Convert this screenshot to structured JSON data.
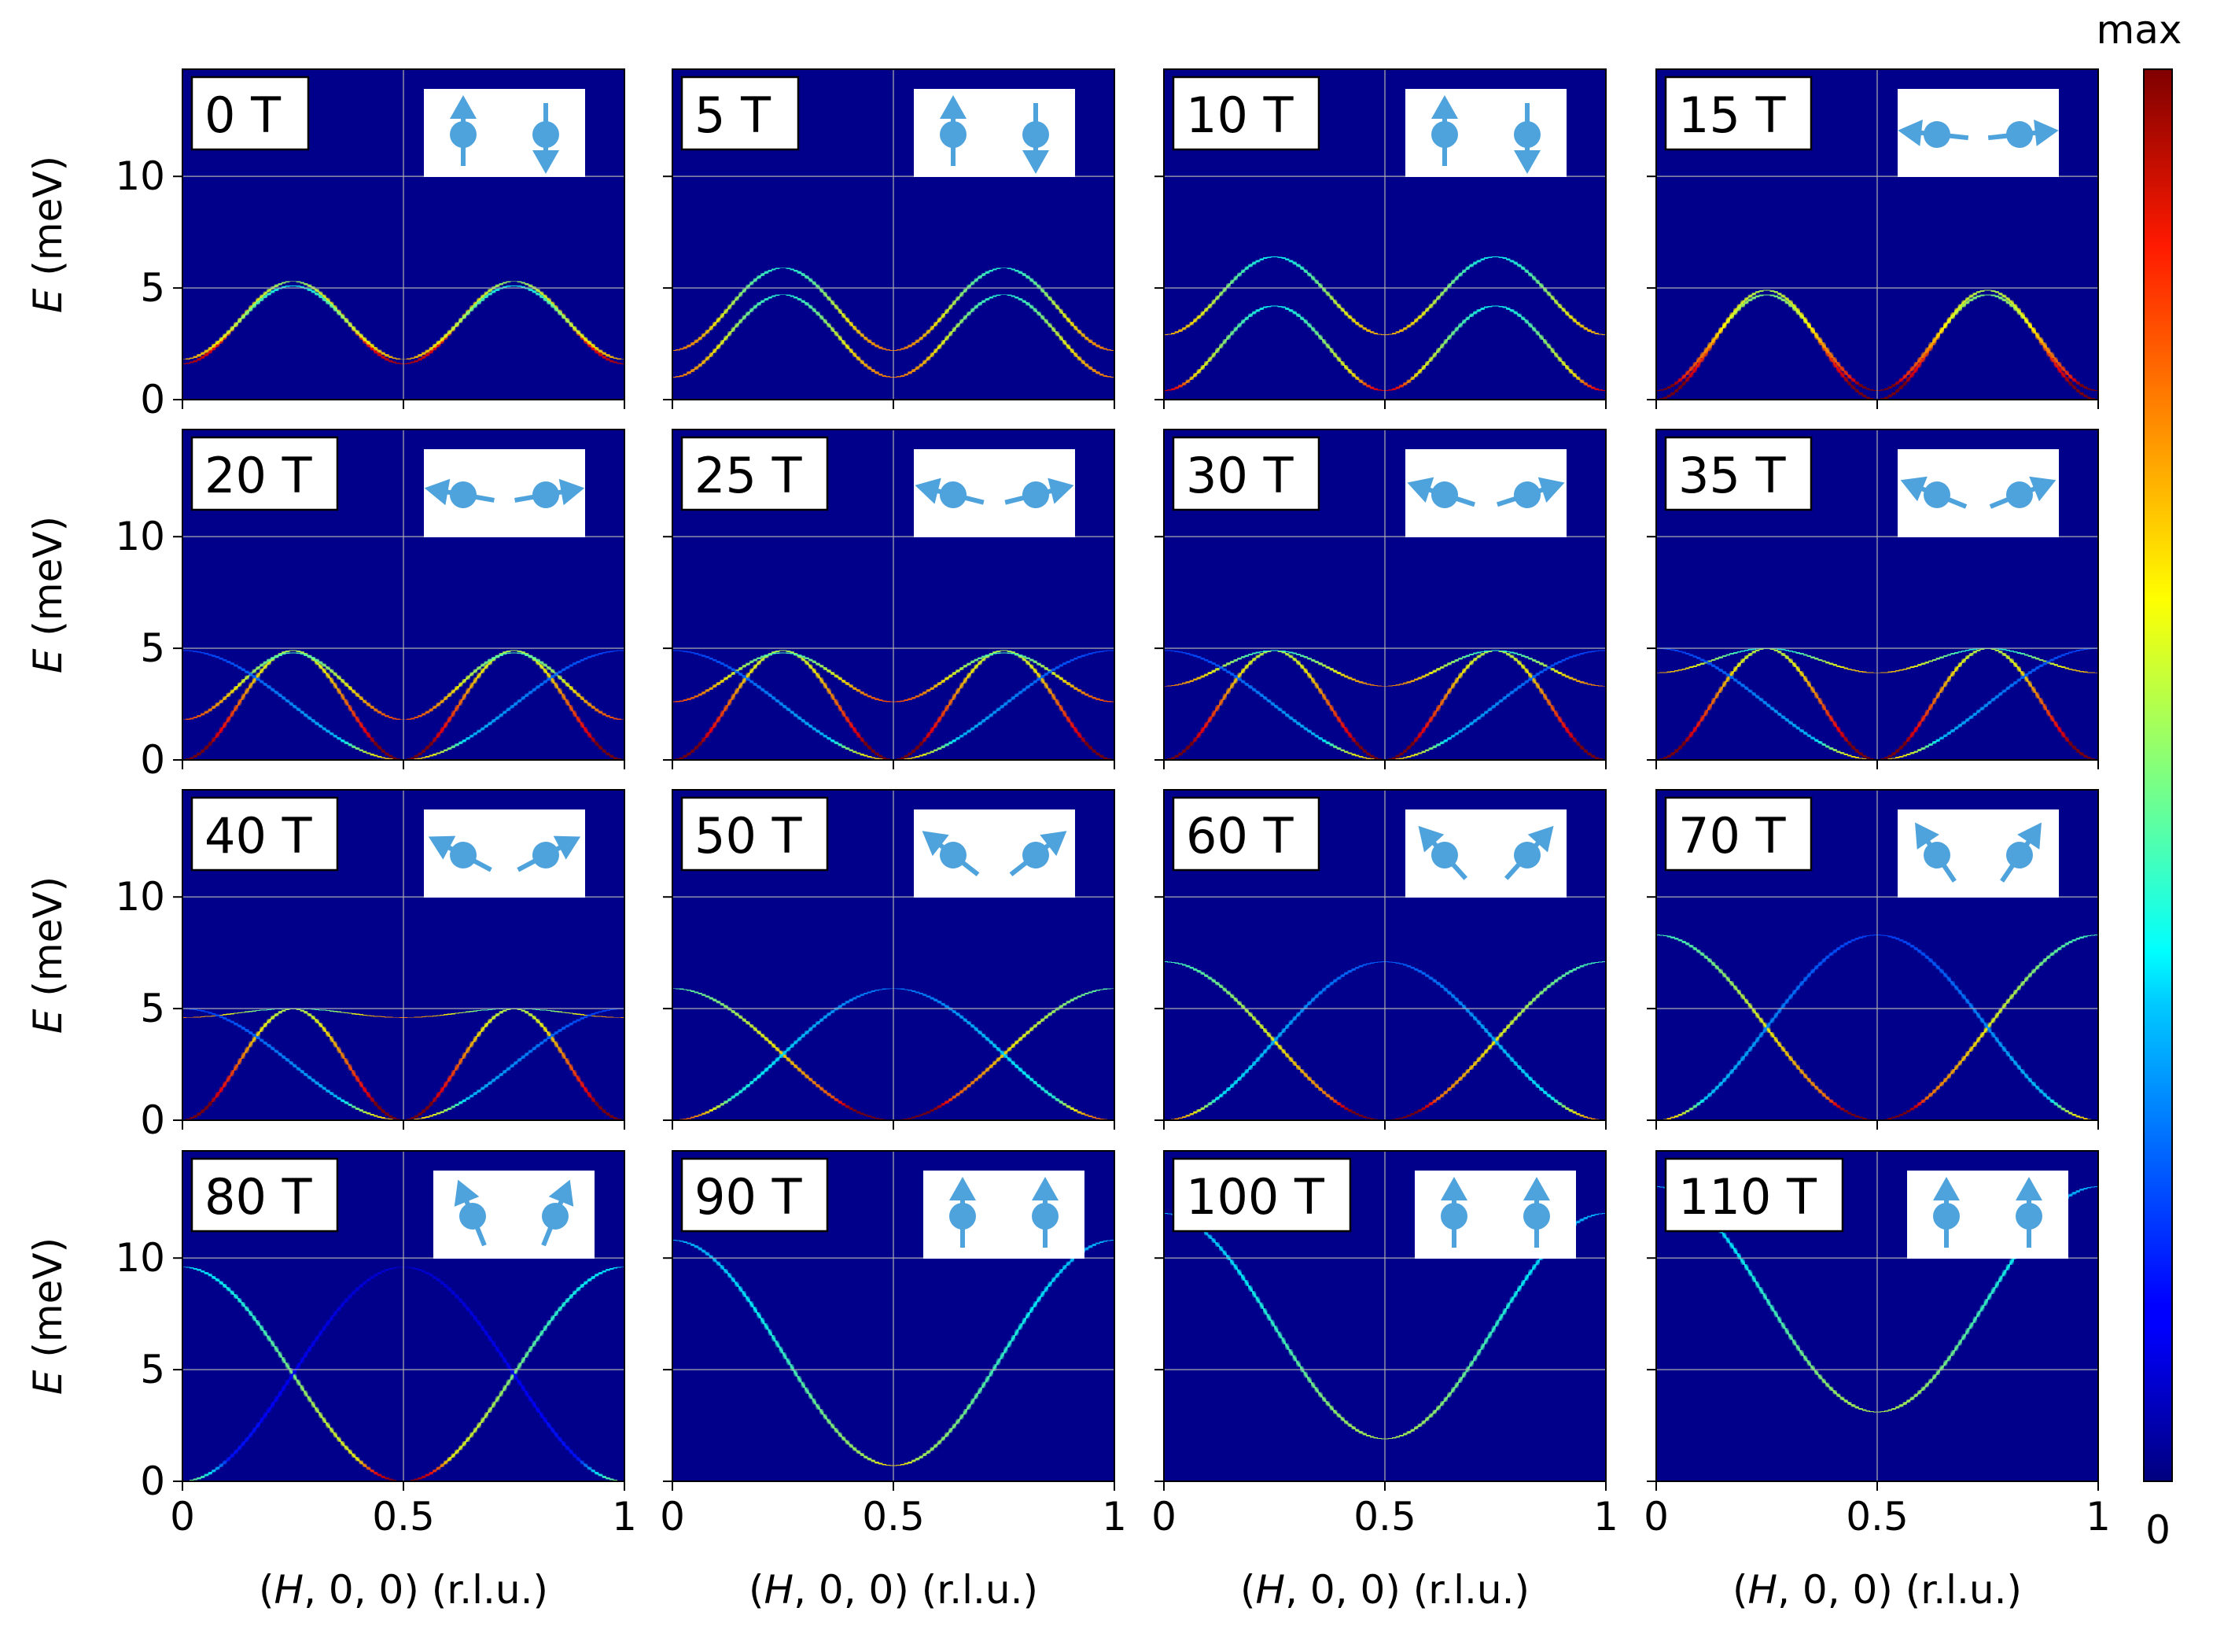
{
  "chart_data": {
    "type": "heatmap",
    "layout": "4x4 small multiples",
    "xlabel_parts": [
      "(",
      "H",
      ", 0, 0) (r.l.u.)"
    ],
    "ylabel_parts": [
      "E",
      " (meV)"
    ],
    "x_range": [
      0,
      1
    ],
    "y_range": [
      0,
      14.8
    ],
    "x_ticks": [
      0,
      0.5,
      1
    ],
    "x_tick_labels": [
      "0",
      "0.5",
      "1"
    ],
    "y_ticks": [
      0,
      5,
      10
    ],
    "y_tick_labels": [
      "0",
      "5",
      "10"
    ],
    "grid": true,
    "colormap": "jet",
    "background_color": "#00008b",
    "spin_color": "#4fa3dc",
    "colorbar": {
      "top_label": "max",
      "bottom_label": "0",
      "placement": "right"
    },
    "panels": [
      {
        "field": "0 T",
        "spin_angle_deg": [
          0,
          180
        ],
        "branches": [
          {
            "min": 1.6,
            "max": 5.3,
            "period": "half",
            "intensity": 0.95
          },
          {
            "min": 1.8,
            "max": 5.1,
            "period": "half",
            "intensity": 0.7
          }
        ]
      },
      {
        "field": "5 T",
        "spin_angle_deg": [
          0,
          180
        ],
        "branches": [
          {
            "min": 2.2,
            "max": 5.9,
            "period": "half",
            "intensity": 0.75
          },
          {
            "min": 1.0,
            "max": 4.7,
            "period": "half",
            "intensity": 0.75
          }
        ]
      },
      {
        "field": "10 T",
        "spin_angle_deg": [
          0,
          180
        ],
        "branches": [
          {
            "min": 2.9,
            "max": 6.4,
            "period": "half",
            "intensity": 0.7
          },
          {
            "min": 0.4,
            "max": 4.2,
            "period": "half",
            "intensity": 0.7
          }
        ]
      },
      {
        "field": "15 T",
        "spin_angle_deg": [
          -84,
          84
        ],
        "branches": [
          {
            "min": 0.0,
            "max": 4.9,
            "period": "half",
            "intensity": 1.0
          },
          {
            "min": 0.4,
            "max": 4.7,
            "period": "half",
            "intensity": 0.9
          }
        ]
      },
      {
        "field": "20 T",
        "spin_angle_deg": [
          -80,
          80
        ],
        "branches": [
          {
            "min": 0.0,
            "max": 4.9,
            "period": "half",
            "intensity": 1.0
          },
          {
            "min": 1.8,
            "max": 4.8,
            "period": "half",
            "intensity": 0.8
          },
          {
            "min": 0.0,
            "max": 4.9,
            "period": "full",
            "intensity": 0.35
          }
        ]
      },
      {
        "field": "25 T",
        "spin_angle_deg": [
          -76,
          76
        ],
        "branches": [
          {
            "min": 0.0,
            "max": 4.9,
            "period": "half",
            "intensity": 1.0
          },
          {
            "min": 2.6,
            "max": 4.8,
            "period": "half",
            "intensity": 0.8
          },
          {
            "min": 0.0,
            "max": 4.9,
            "period": "full",
            "intensity": 0.35
          }
        ]
      },
      {
        "field": "30 T",
        "spin_angle_deg": [
          -72,
          72
        ],
        "branches": [
          {
            "min": 0.0,
            "max": 4.9,
            "period": "half",
            "intensity": 1.0
          },
          {
            "min": 3.3,
            "max": 4.9,
            "period": "half",
            "intensity": 0.75
          },
          {
            "min": 0.0,
            "max": 4.9,
            "period": "full",
            "intensity": 0.35
          }
        ]
      },
      {
        "field": "35 T",
        "spin_angle_deg": [
          -68,
          68
        ],
        "branches": [
          {
            "min": 0.0,
            "max": 5.0,
            "period": "half",
            "intensity": 1.0
          },
          {
            "min": 3.9,
            "max": 5.0,
            "period": "half",
            "intensity": 0.7
          },
          {
            "min": 0.0,
            "max": 5.0,
            "period": "full",
            "intensity": 0.35
          }
        ]
      },
      {
        "field": "40 T",
        "spin_angle_deg": [
          -62,
          62
        ],
        "branches": [
          {
            "min": 0.0,
            "max": 5.0,
            "period": "half",
            "intensity": 1.0
          },
          {
            "min": 4.6,
            "max": 5.0,
            "period": "half",
            "intensity": 0.75
          },
          {
            "min": 0.0,
            "max": 5.0,
            "period": "full",
            "intensity": 0.35
          }
        ]
      },
      {
        "field": "50 T",
        "spin_angle_deg": [
          -52,
          52
        ],
        "branches": [
          {
            "min": 0.0,
            "max": 5.9,
            "period": "full",
            "intensity": 0.85
          },
          {
            "min": 0.0,
            "max": 5.9,
            "period": "full-shift",
            "intensity": 0.45
          }
        ]
      },
      {
        "field": "60 T",
        "spin_angle_deg": [
          -42,
          42
        ],
        "branches": [
          {
            "min": 0.0,
            "max": 7.1,
            "period": "full",
            "intensity": 0.8
          },
          {
            "min": 0.0,
            "max": 7.1,
            "period": "full-shift",
            "intensity": 0.4
          }
        ]
      },
      {
        "field": "70 T",
        "spin_angle_deg": [
          -34,
          34
        ],
        "branches": [
          {
            "min": 0.0,
            "max": 8.3,
            "period": "full",
            "intensity": 0.8
          },
          {
            "min": 0.0,
            "max": 8.3,
            "period": "full-shift",
            "intensity": 0.35
          }
        ]
      },
      {
        "field": "80 T",
        "spin_angle_deg": [
          -22,
          22
        ],
        "branches": [
          {
            "min": 0.0,
            "max": 9.6,
            "period": "full",
            "intensity": 0.65
          },
          {
            "min": 0.0,
            "max": 9.6,
            "period": "full-shift",
            "intensity": 0.15
          }
        ]
      },
      {
        "field": "90 T",
        "spin_angle_deg": [
          0,
          0
        ],
        "branches": [
          {
            "min": 0.7,
            "max": 10.8,
            "period": "full",
            "intensity": 0.55
          }
        ]
      },
      {
        "field": "100 T",
        "spin_angle_deg": [
          0,
          0
        ],
        "branches": [
          {
            "min": 1.9,
            "max": 12.0,
            "period": "full",
            "intensity": 0.55
          }
        ]
      },
      {
        "field": "110 T",
        "spin_angle_deg": [
          0,
          0
        ],
        "branches": [
          {
            "min": 3.1,
            "max": 13.2,
            "period": "full",
            "intensity": 0.55
          }
        ]
      }
    ]
  }
}
